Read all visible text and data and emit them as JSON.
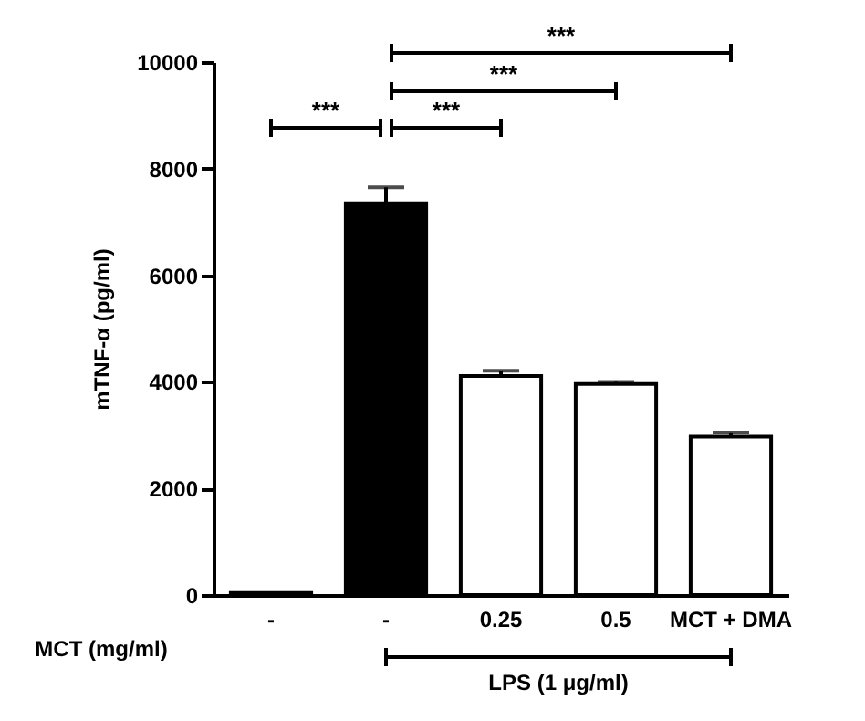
{
  "chart_data": {
    "type": "bar",
    "categories": [
      "-",
      "-",
      "0.25",
      "0.5",
      "MCT + DMA"
    ],
    "values": [
      40,
      7350,
      4110,
      3960,
      2970
    ],
    "colors": [
      "#ffffff",
      "#000000",
      "#ffffff",
      "#ffffff",
      "#ffffff"
    ],
    "errors": [
      null,
      [
        7350,
        7650
      ],
      [
        4110,
        4210
      ],
      [
        3960,
        4000
      ],
      [
        2970,
        3050
      ]
    ],
    "ylabel": "mTNF-α (pg/ml)",
    "xlabel": "MCT (mg/ml)",
    "ylim": [
      0,
      10000
    ],
    "yticks": [
      0,
      2000,
      4000,
      6000,
      8000,
      10000
    ],
    "annotations": [
      "***",
      "***",
      "***",
      "***",
      "LPS (1 μg/ml)"
    ],
    "grid": false
  }
}
